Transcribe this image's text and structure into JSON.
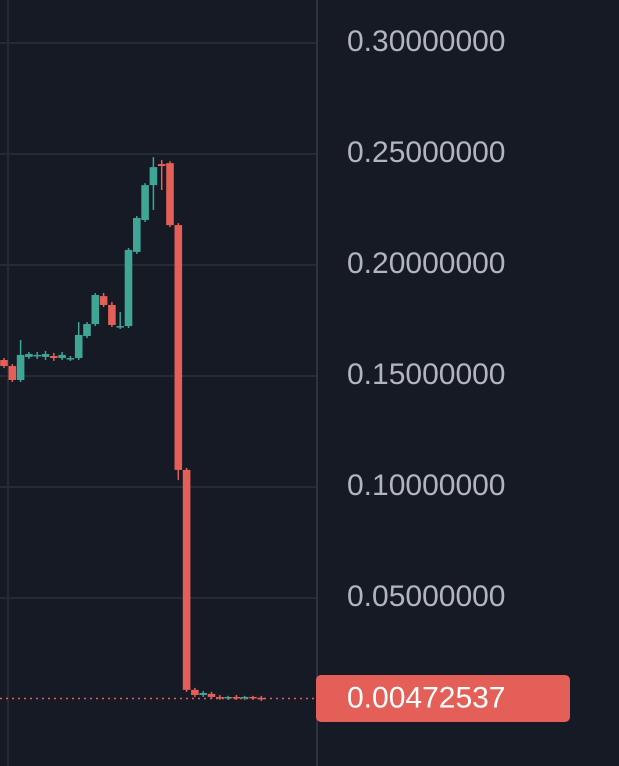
{
  "chart_data": {
    "type": "candlestick",
    "up_color": "#3fa595",
    "down_color": "#e45f57",
    "grid": true,
    "ylim": [
      -0.0257,
      0.3194
    ],
    "yticks": [
      {
        "value": 0.05,
        "label": "0.05000000"
      },
      {
        "value": 0.1,
        "label": "0.10000000"
      },
      {
        "value": 0.15,
        "label": "0.15000000"
      },
      {
        "value": 0.2,
        "label": "0.20000000"
      },
      {
        "value": 0.25,
        "label": "0.25000000"
      },
      {
        "value": 0.3,
        "label": "0.30000000"
      }
    ],
    "last_price": {
      "value": 0.00472537,
      "label": "0.00472537"
    },
    "open": [
      0.1572,
      0.1545,
      0.1482,
      0.1586,
      0.159,
      0.1586,
      0.159,
      0.1581,
      0.1577,
      0.1581,
      0.168,
      0.1734,
      0.186,
      0.182,
      0.1721,
      0.1725,
      0.2059,
      0.2203,
      0.236,
      0.2455,
      0.2459,
      0.218,
      0.1077,
      0.0086,
      0.0063,
      0.0068,
      0.0054,
      0.005,
      0.0054,
      0.005,
      0.0054,
      0.005
    ],
    "high": [
      0.1581,
      0.1554,
      0.1662,
      0.1608,
      0.1608,
      0.1613,
      0.1604,
      0.1608,
      0.159,
      0.1743,
      0.1743,
      0.1874,
      0.1874,
      0.1833,
      0.1788,
      0.2077,
      0.2221,
      0.2369,
      0.2486,
      0.2473,
      0.2468,
      0.2189,
      0.1086,
      0.0095,
      0.0081,
      0.0077,
      0.0063,
      0.0059,
      0.0063,
      0.0059,
      0.0059,
      0.0059
    ],
    "low": [
      0.1536,
      0.1473,
      0.1473,
      0.1577,
      0.1577,
      0.1572,
      0.1568,
      0.1572,
      0.1568,
      0.1572,
      0.1671,
      0.1725,
      0.1811,
      0.1721,
      0.1712,
      0.1716,
      0.205,
      0.2194,
      0.2248,
      0.2338,
      0.2171,
      0.1032,
      0.0077,
      0.0054,
      0.0054,
      0.0045,
      0.0041,
      0.0041,
      0.0041,
      0.0041,
      0.0041,
      0.0036
    ],
    "close": [
      0.1545,
      0.1482,
      0.1595,
      0.1599,
      0.1595,
      0.1599,
      0.1581,
      0.1595,
      0.1581,
      0.1685,
      0.1734,
      0.1865,
      0.182,
      0.173,
      0.1725,
      0.2068,
      0.2212,
      0.236,
      0.2441,
      0.2446,
      0.218,
      0.1077,
      0.0086,
      0.0063,
      0.0072,
      0.0054,
      0.005,
      0.0054,
      0.005,
      0.0054,
      0.005,
      0.00472537
    ]
  }
}
